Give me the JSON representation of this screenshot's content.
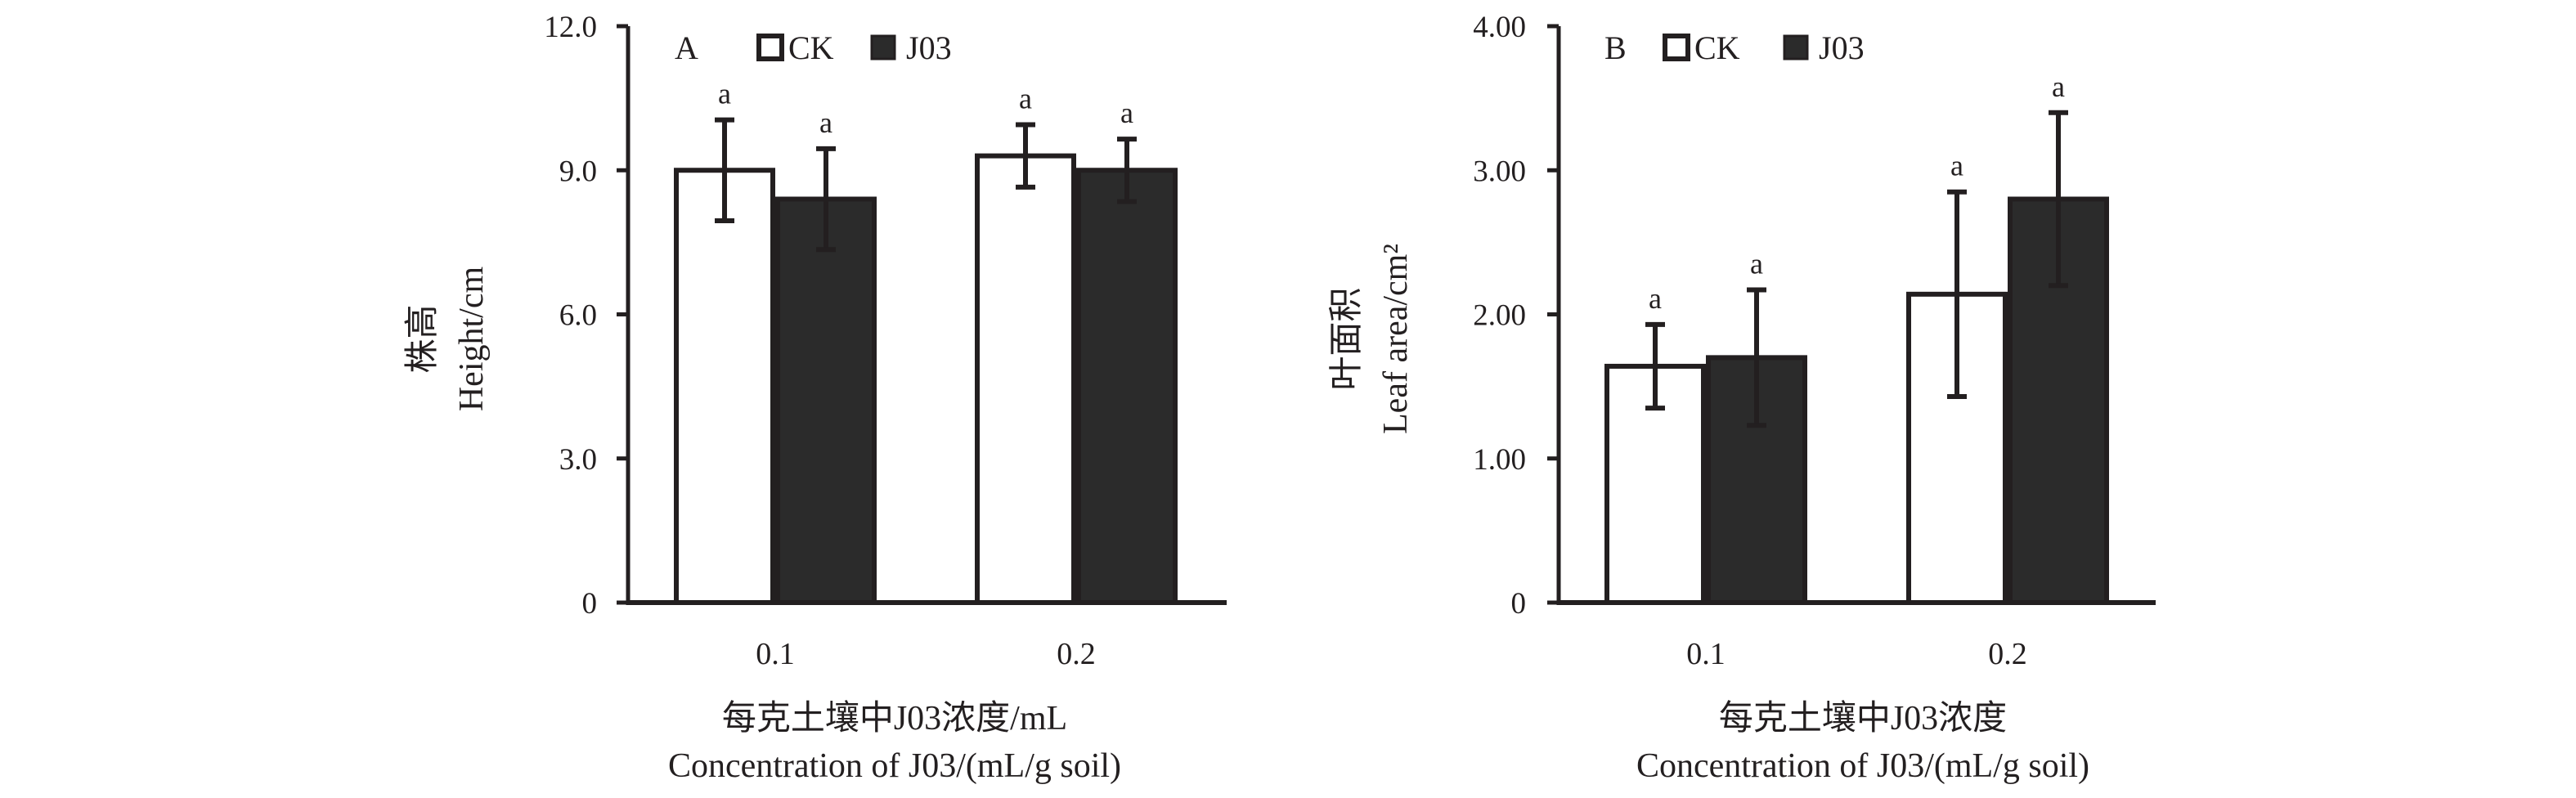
{
  "chart_data": [
    {
      "type": "bar",
      "panel_label": "A",
      "categories": [
        "0.1",
        "0.2"
      ],
      "series": [
        {
          "name": "CK",
          "values": [
            9.0,
            9.3
          ],
          "errors": [
            1.05,
            0.65
          ],
          "sig": [
            "a",
            "a"
          ]
        },
        {
          "name": "J03",
          "values": [
            8.4,
            9.0
          ],
          "errors": [
            1.05,
            0.65
          ],
          "sig": [
            "a",
            "a"
          ]
        }
      ],
      "ylim": [
        0,
        12
      ],
      "yticks": [
        "0",
        "3.0",
        "6.0",
        "9.0",
        "12.0"
      ],
      "ylabel": [
        "株高",
        "Height/cm"
      ],
      "xlabel": [
        "每克土壤中J03浓度/mL",
        "Concentration of J03/(mL/g soil)"
      ],
      "legend_position": "top"
    },
    {
      "type": "bar",
      "panel_label": "B",
      "categories": [
        "0.1",
        "0.2"
      ],
      "series": [
        {
          "name": "CK",
          "values": [
            1.64,
            2.14
          ],
          "errors": [
            0.29,
            0.71
          ],
          "sig": [
            "a",
            "a"
          ]
        },
        {
          "name": "J03",
          "values": [
            1.7,
            2.8
          ],
          "errors": [
            0.47,
            0.6
          ],
          "sig": [
            "a",
            "a"
          ]
        }
      ],
      "ylim": [
        0,
        4
      ],
      "yticks": [
        "0",
        "1.00",
        "2.00",
        "3.00",
        "4.00"
      ],
      "ylabel": [
        "叶面积",
        "Leaf area/cm²"
      ],
      "xlabel": [
        "每克土壤中J03浓度",
        "Concentration of J03/(mL/g soil)"
      ],
      "legend_position": "top"
    }
  ],
  "colors": {
    "ck_fill": "#ffffff",
    "j03_fill": "#2b2b2b",
    "stroke": "#231f20"
  }
}
